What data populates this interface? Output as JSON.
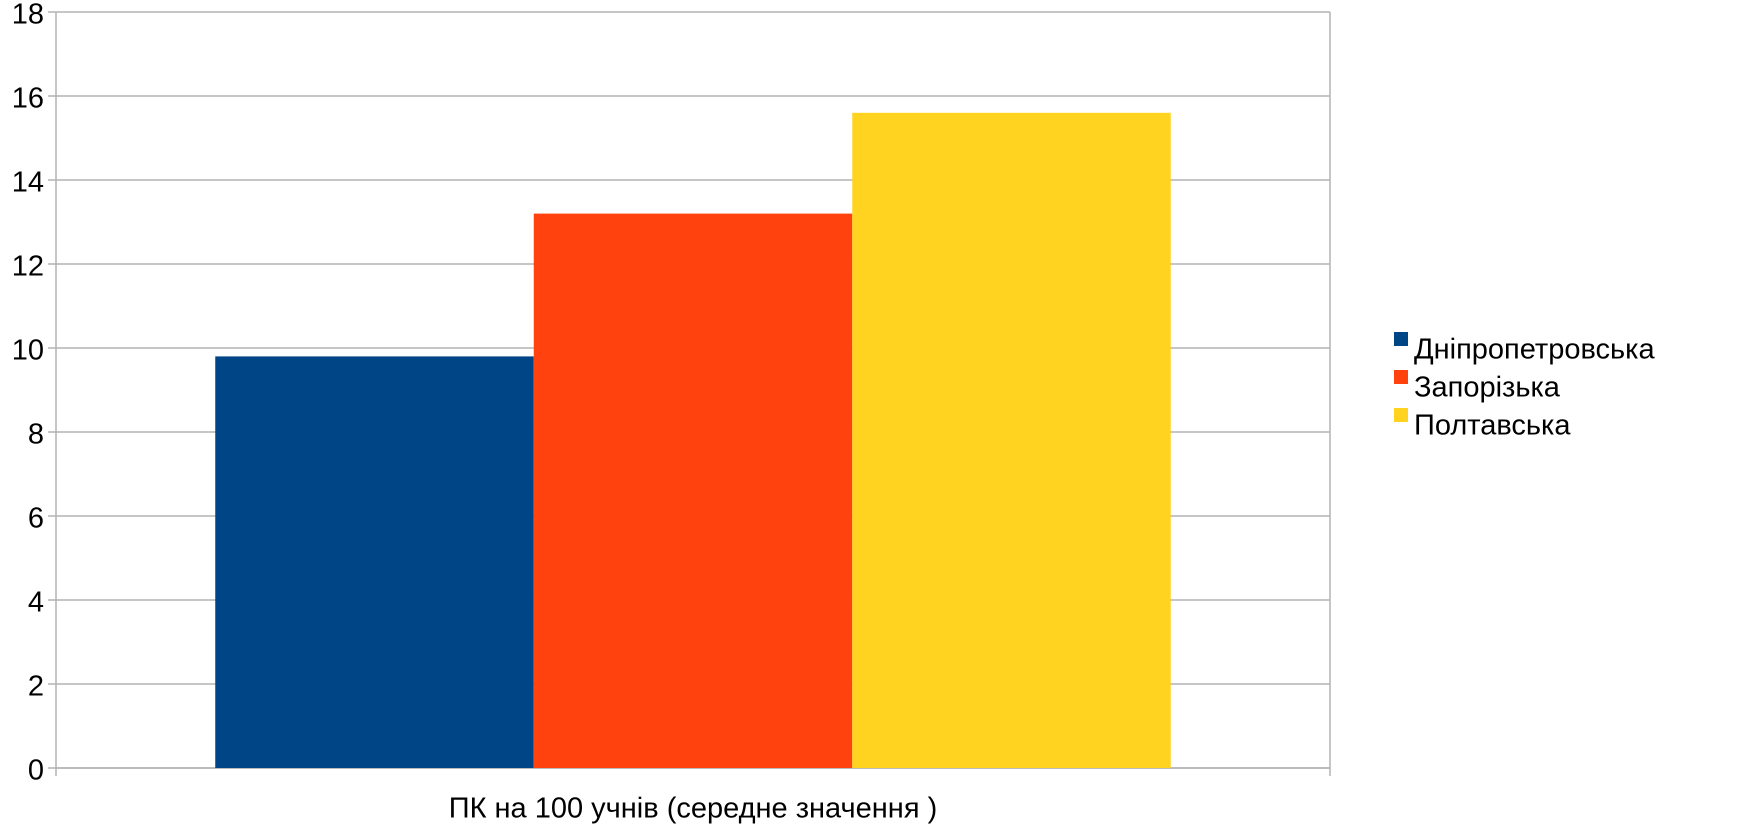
{
  "chart_data": {
    "type": "bar",
    "categories": [
      "ПК на 100 учнів (середне значення )"
    ],
    "series": [
      {
        "name": "Дніпропетровська",
        "color": "#004586",
        "values": [
          9.8
        ]
      },
      {
        "name": "Запорізька",
        "color": "#ff420e",
        "values": [
          13.2
        ]
      },
      {
        "name": "Полтавська",
        "color": "#ffd320",
        "values": [
          15.6
        ]
      }
    ],
    "ylim": [
      0,
      18
    ],
    "yticks": [
      0,
      2,
      4,
      6,
      8,
      10,
      12,
      14,
      16,
      18
    ],
    "grid": true,
    "legend": "right"
  }
}
